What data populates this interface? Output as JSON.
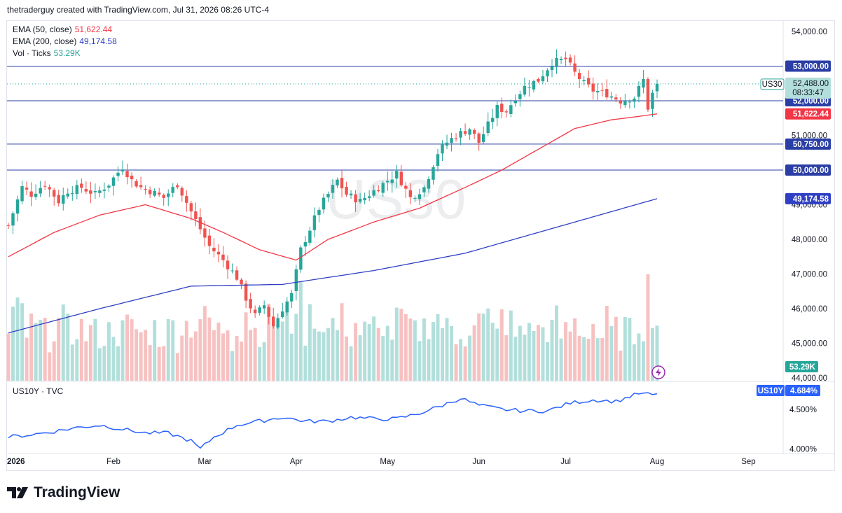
{
  "header": {
    "text": "thetraderguy created with TradingView.com, Jul 31, 2026 08:26 UTC-4"
  },
  "legend": {
    "ema50_label": "EMA (50, close)",
    "ema50_value": "51,622.44",
    "ema200_label": "EMA (200, close)",
    "ema200_value": "49,174.58",
    "vol_label": "Vol · Ticks",
    "vol_value": "53.29K",
    "lower_label": "US10Y · TVC"
  },
  "brand": {
    "name": "TradingView"
  },
  "watermark": "US30",
  "colors": {
    "up": "#26a69a",
    "down": "#ef5350",
    "ema50": "#f23645",
    "ema200": "#2f3fc4",
    "hline": "#2a3ea6",
    "yield": "#2962ff",
    "vol_up": "#b2dfdb",
    "vol_down": "#f7c1c1"
  },
  "symbol_tag": {
    "symbol": "US30",
    "price": "52,488.00",
    "countdown": "08:33:47"
  },
  "price_tags": [
    {
      "label": "53,000.00",
      "value": 53000,
      "kind": "level"
    },
    {
      "label": "52,000.00",
      "value": 52000,
      "kind": "level"
    },
    {
      "label": "51,622.44",
      "value": 51622.44,
      "kind": "ema50"
    },
    {
      "label": "50,750.00",
      "value": 50750,
      "kind": "level"
    },
    {
      "label": "50,000.00",
      "value": 50000,
      "kind": "level"
    },
    {
      "label": "49,174.58",
      "value": 49174.58,
      "kind": "ema200"
    }
  ],
  "vol_tag": "53.29K",
  "yield_tag": {
    "symbol": "US10Y",
    "value": "4.684%"
  },
  "chart_data": {
    "type": "candlestick",
    "price_axis": {
      "ticks": [
        54000,
        53000,
        51000,
        49000,
        48000,
        47000,
        46000,
        45000,
        44000
      ],
      "tick_labels": [
        "54,000.00",
        "53,000.00",
        "51,000.00",
        "49,000.00",
        "48,000.00",
        "47,000.00",
        "46,000.00",
        "45,000.00",
        "44,000.00"
      ],
      "ylim": [
        43950,
        54200
      ]
    },
    "yield_axis": {
      "ticks": [
        4.5,
        4.0
      ],
      "tick_labels": [
        "4.500%",
        "4.000%"
      ],
      "ylim": [
        3.88,
        4.72
      ]
    },
    "x_axis": {
      "labels": [
        "2026",
        "Feb",
        "Mar",
        "Apr",
        "May",
        "Jun",
        "Jul",
        "Aug",
        "Sep"
      ],
      "label_bar_index": [
        0,
        23,
        43,
        63,
        83,
        103,
        122,
        142,
        162
      ]
    },
    "horizontal_levels": [
      53000,
      52000,
      50750,
      50000
    ],
    "last_price": 52488,
    "anchors": {
      "bar": [
        0,
        3,
        5,
        8,
        11,
        13,
        16,
        19,
        22,
        25,
        27,
        29,
        31,
        34,
        37,
        40,
        42,
        44,
        47,
        50,
        52,
        54,
        56,
        58,
        60,
        62,
        64,
        66,
        68,
        70,
        72,
        74,
        77,
        80,
        82,
        85,
        88,
        91,
        94,
        96,
        98,
        101,
        103,
        105,
        107,
        109,
        111,
        113,
        116,
        119,
        122,
        124,
        126,
        128,
        131,
        134,
        137,
        139,
        140,
        141,
        142
      ],
      "close": [
        48400,
        49500,
        49300,
        49600,
        49100,
        49400,
        49500,
        49300,
        49600,
        50100,
        49700,
        49500,
        49400,
        49200,
        49600,
        48800,
        48300,
        47800,
        47400,
        46900,
        46300,
        45800,
        46100,
        45500,
        46000,
        46400,
        47700,
        48300,
        48900,
        49300,
        49700,
        49300,
        49100,
        49400,
        49600,
        49900,
        49200,
        49500,
        50500,
        50800,
        51000,
        51200,
        50800,
        51300,
        51800,
        51700,
        52100,
        52400,
        52600,
        53100,
        53200,
        52800,
        52500,
        52300,
        52200,
        52000,
        52100,
        52600,
        51800,
        52200,
        52488
      ]
    },
    "ema50_anchors": {
      "bar": [
        0,
        10,
        20,
        30,
        40,
        47,
        55,
        63,
        70,
        80,
        90,
        100,
        108,
        116,
        124,
        132,
        138,
        142
      ],
      "value": [
        47500,
        48200,
        48700,
        49000,
        48600,
        48200,
        47700,
        47400,
        48000,
        48500,
        48900,
        49500,
        50000,
        50600,
        51200,
        51450,
        51550,
        51622.44
      ]
    },
    "ema200_anchors": {
      "bar": [
        0,
        20,
        40,
        60,
        80,
        100,
        120,
        142
      ],
      "value": [
        45300,
        46000,
        46650,
        46700,
        47100,
        47600,
        48350,
        49174.58
      ]
    },
    "yield_anchors": {
      "bar": [
        0,
        5,
        10,
        15,
        20,
        25,
        30,
        35,
        40,
        42,
        45,
        50,
        55,
        60,
        65,
        70,
        75,
        80,
        85,
        90,
        95,
        99,
        103,
        108,
        113,
        118,
        123,
        128,
        133,
        138,
        142
      ],
      "value": [
        4.15,
        4.18,
        4.22,
        4.27,
        4.3,
        4.25,
        4.2,
        4.2,
        4.1,
        4.0,
        4.15,
        4.3,
        4.35,
        4.4,
        4.35,
        4.35,
        4.4,
        4.38,
        4.38,
        4.45,
        4.55,
        4.64,
        4.55,
        4.5,
        4.48,
        4.48,
        4.58,
        4.62,
        4.6,
        4.7,
        4.68
      ]
    }
  }
}
